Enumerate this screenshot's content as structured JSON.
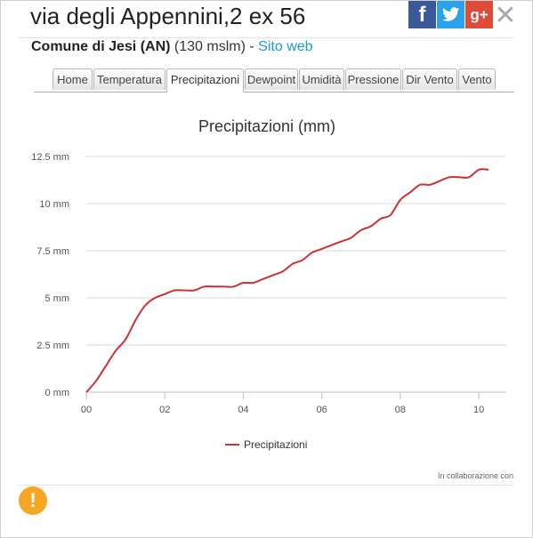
{
  "header": {
    "title": "via degli Appennini,2 ex 56",
    "comune": "Comune di Jesi (AN)",
    "altitude": "(130 mslm)",
    "separator": "-",
    "link": "Sito web"
  },
  "social": {
    "facebook": "f",
    "google_plus": "g+",
    "close": "✕"
  },
  "tabs": [
    "Home",
    "Temperatura",
    "Precipitazioni",
    "Dewpoint",
    "Umidità",
    "Pressione",
    "Dir Vento",
    "Vento"
  ],
  "active_tab": "Precipitazioni",
  "footer": {
    "credits": "In collaborazione con",
    "alert": "!"
  },
  "colors": {
    "series": "#d03030",
    "link": "#1a9ad6",
    "facebook": "#3b5998",
    "twitter": "#2aa3ef",
    "google": "#dd4b39",
    "alert": "#f5a623"
  },
  "chart_data": {
    "type": "line",
    "title": "Precipitazioni (mm)",
    "xlabel": "",
    "ylabel": "",
    "xlim": [
      0,
      10.4
    ],
    "ylim": [
      0,
      12.5
    ],
    "x_ticks": [
      "00",
      "02",
      "04",
      "06",
      "08",
      "10"
    ],
    "y_ticks": [
      "0 mm",
      "2.5 mm",
      "5 mm",
      "7.5 mm",
      "10 mm",
      "12.5 mm"
    ],
    "grid": true,
    "legend": "bottom-center",
    "series": [
      {
        "name": "Precipitazioni",
        "x": [
          0,
          0.25,
          0.5,
          0.75,
          1.0,
          1.25,
          1.5,
          1.75,
          2.0,
          2.25,
          2.5,
          2.75,
          3.0,
          3.25,
          3.5,
          3.75,
          4.0,
          4.25,
          4.5,
          4.75,
          5.0,
          5.25,
          5.5,
          5.75,
          6.0,
          6.25,
          6.5,
          6.75,
          7.0,
          7.25,
          7.5,
          7.75,
          8.0,
          8.25,
          8.5,
          8.75,
          9.0,
          9.25,
          9.5,
          9.75,
          10.0,
          10.25
        ],
        "values": [
          0.0,
          0.6,
          1.4,
          2.2,
          2.8,
          3.8,
          4.6,
          5.0,
          5.2,
          5.4,
          5.4,
          5.4,
          5.6,
          5.6,
          5.6,
          5.6,
          5.8,
          5.8,
          6.0,
          6.2,
          6.4,
          6.8,
          7.0,
          7.4,
          7.6,
          7.8,
          8.0,
          8.2,
          8.6,
          8.8,
          9.2,
          9.4,
          10.2,
          10.6,
          11.0,
          11.0,
          11.2,
          11.4,
          11.4,
          11.4,
          11.8,
          11.8
        ]
      }
    ]
  }
}
